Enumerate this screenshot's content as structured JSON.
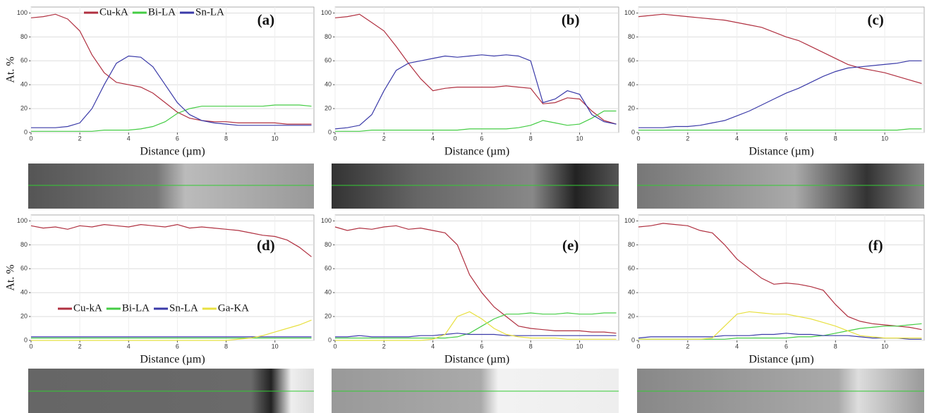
{
  "chart_data": [
    {
      "type": "line",
      "label": "(a)",
      "x_label": "Distance (µm)",
      "y_label": "At. %",
      "legend": "top",
      "x": [
        0,
        0.5,
        1,
        1.5,
        2,
        2.5,
        3,
        3.5,
        4,
        4.5,
        5,
        5.5,
        6,
        6.5,
        7,
        7.5,
        8,
        8.5,
        9,
        9.5,
        10,
        10.5,
        11,
        11.5
      ],
      "series": [
        {
          "name": "Cu-kA",
          "color": "#b03040",
          "values": [
            96,
            97,
            99,
            95,
            85,
            65,
            50,
            42,
            40,
            38,
            33,
            25,
            17,
            12,
            10,
            9,
            9,
            8,
            8,
            8,
            8,
            7,
            7,
            7
          ]
        },
        {
          "name": "Bi-LA",
          "color": "#44cc44",
          "values": [
            1,
            1,
            1,
            1,
            1,
            1,
            2,
            2,
            2,
            3,
            5,
            9,
            16,
            20,
            22,
            22,
            22,
            22,
            22,
            22,
            23,
            23,
            23,
            22
          ]
        },
        {
          "name": "Sn-LA",
          "color": "#3a3aa8",
          "values": [
            4,
            4,
            4,
            5,
            8,
            20,
            40,
            58,
            64,
            63,
            55,
            40,
            25,
            15,
            10,
            8,
            7,
            6,
            6,
            6,
            6,
            6,
            6,
            6
          ]
        }
      ],
      "xlim": [
        0,
        11.6
      ],
      "ylim": [
        0,
        105
      ],
      "xticks": [
        0,
        2,
        4,
        6,
        8,
        10
      ],
      "yticks": [
        0,
        20,
        40,
        60,
        80,
        100
      ],
      "grid": true
    },
    {
      "type": "line",
      "label": "(b)",
      "x_label": "Distance (µm)",
      "x": [
        0,
        0.5,
        1,
        1.5,
        2,
        2.5,
        3,
        3.5,
        4,
        4.5,
        5,
        5.5,
        6,
        6.5,
        7,
        7.5,
        8,
        8.5,
        9,
        9.5,
        10,
        10.5,
        11,
        11.5
      ],
      "series": [
        {
          "color": "#b03040",
          "values": [
            96,
            97,
            99,
            92,
            85,
            72,
            58,
            45,
            35,
            37,
            38,
            38,
            38,
            38,
            39,
            38,
            37,
            24,
            25,
            29,
            28,
            18,
            10,
            7
          ]
        },
        {
          "color": "#44cc44",
          "values": [
            1,
            1,
            1,
            2,
            2,
            2,
            2,
            2,
            2,
            2,
            2,
            3,
            3,
            3,
            3,
            4,
            6,
            10,
            8,
            6,
            7,
            12,
            18,
            18
          ]
        },
        {
          "color": "#3a3aa8",
          "values": [
            3,
            4,
            6,
            15,
            35,
            52,
            58,
            60,
            62,
            64,
            63,
            64,
            65,
            64,
            65,
            64,
            60,
            25,
            28,
            35,
            32,
            15,
            9,
            7
          ]
        }
      ],
      "xlim": [
        0,
        11.6
      ],
      "ylim": [
        0,
        105
      ],
      "xticks": [
        0,
        2,
        4,
        6,
        8,
        10
      ],
      "yticks": [
        0,
        20,
        40,
        60,
        80,
        100
      ],
      "grid": true
    },
    {
      "type": "line",
      "label": "(c)",
      "x_label": "Distance (µm)",
      "x": [
        0,
        0.5,
        1,
        1.5,
        2,
        2.5,
        3,
        3.5,
        4,
        4.5,
        5,
        5.5,
        6,
        6.5,
        7,
        7.5,
        8,
        8.5,
        9,
        9.5,
        10,
        10.5,
        11,
        11.5
      ],
      "series": [
        {
          "color": "#b03040",
          "values": [
            97,
            98,
            99,
            98,
            97,
            96,
            95,
            94,
            92,
            90,
            88,
            84,
            80,
            77,
            72,
            67,
            62,
            57,
            54,
            52,
            50,
            47,
            44,
            41
          ]
        },
        {
          "color": "#44cc44",
          "values": [
            2,
            2,
            2,
            2,
            2,
            2,
            2,
            2,
            2,
            2,
            2,
            2,
            2,
            2,
            2,
            2,
            2,
            2,
            2,
            2,
            2,
            2,
            3,
            3
          ]
        },
        {
          "color": "#3a3aa8",
          "values": [
            4,
            4,
            4,
            5,
            5,
            6,
            8,
            10,
            14,
            18,
            23,
            28,
            33,
            37,
            42,
            47,
            51,
            54,
            55,
            56,
            57,
            58,
            60,
            60
          ]
        }
      ],
      "xlim": [
        0,
        11.6
      ],
      "ylim": [
        0,
        105
      ],
      "xticks": [
        0,
        2,
        4,
        6,
        8,
        10
      ],
      "yticks": [
        0,
        20,
        40,
        60,
        80,
        100
      ],
      "grid": true
    },
    {
      "type": "line",
      "label": "(d)",
      "x_label": "Distance (µm)",
      "y_label": "At. %",
      "legend": "lower-left",
      "x": [
        0,
        0.5,
        1,
        1.5,
        2,
        2.5,
        3,
        3.5,
        4,
        4.5,
        5,
        5.5,
        6,
        6.5,
        7,
        7.5,
        8,
        8.5,
        9,
        9.5,
        10,
        10.5,
        11,
        11.5
      ],
      "series": [
        {
          "name": "Cu-kA",
          "color": "#b03040",
          "values": [
            96,
            94,
            95,
            93,
            96,
            95,
            97,
            96,
            95,
            97,
            96,
            95,
            97,
            94,
            95,
            94,
            93,
            92,
            90,
            88,
            87,
            84,
            78,
            70
          ]
        },
        {
          "name": "Bi-LA",
          "color": "#44cc44",
          "values": [
            2,
            2,
            2,
            2,
            2,
            2,
            2,
            2,
            2,
            2,
            2,
            2,
            2,
            2,
            2,
            2,
            2,
            2,
            2,
            2,
            2,
            2,
            2,
            2
          ]
        },
        {
          "name": "Sn-LA",
          "color": "#3a3aa8",
          "values": [
            3,
            3,
            3,
            3,
            3,
            3,
            3,
            3,
            3,
            3,
            3,
            3,
            3,
            3,
            3,
            3,
            3,
            3,
            3,
            3,
            3,
            3,
            3,
            3
          ]
        },
        {
          "name": "Ga-KA",
          "color": "#e8e040",
          "values": [
            0,
            0,
            0,
            0,
            0,
            0,
            0,
            0,
            0,
            0,
            0,
            0,
            0,
            0,
            0,
            0,
            0,
            1,
            2,
            4,
            7,
            10,
            13,
            17
          ]
        }
      ],
      "xlim": [
        0,
        11.6
      ],
      "ylim": [
        0,
        105
      ],
      "xticks": [
        0,
        2,
        4,
        6,
        8,
        10
      ],
      "yticks": [
        0,
        20,
        40,
        60,
        80,
        100
      ],
      "grid": true
    },
    {
      "type": "line",
      "label": "(e)",
      "x_label": "Distance (µm)",
      "x": [
        0,
        0.5,
        1,
        1.5,
        2,
        2.5,
        3,
        3.5,
        4,
        4.5,
        5,
        5.5,
        6,
        6.5,
        7,
        7.5,
        8,
        8.5,
        9,
        9.5,
        10,
        10.5,
        11,
        11.5
      ],
      "series": [
        {
          "color": "#b03040",
          "values": [
            95,
            92,
            94,
            93,
            95,
            96,
            93,
            94,
            92,
            90,
            80,
            55,
            40,
            28,
            20,
            12,
            10,
            9,
            8,
            8,
            8,
            7,
            7,
            6
          ]
        },
        {
          "color": "#44cc44",
          "values": [
            2,
            2,
            2,
            2,
            2,
            2,
            2,
            2,
            2,
            2,
            3,
            6,
            12,
            18,
            22,
            22,
            23,
            22,
            22,
            23,
            22,
            22,
            23,
            23
          ]
        },
        {
          "color": "#3a3aa8",
          "values": [
            3,
            3,
            4,
            3,
            3,
            3,
            3,
            4,
            4,
            5,
            6,
            5,
            5,
            5,
            4,
            4,
            4,
            4,
            4,
            4,
            4,
            4,
            4,
            4
          ]
        },
        {
          "color": "#e8e040",
          "values": [
            0,
            0,
            0,
            0,
            0,
            0,
            0,
            0,
            1,
            5,
            20,
            24,
            18,
            10,
            5,
            3,
            2,
            2,
            2,
            1,
            1,
            1,
            1,
            1
          ]
        }
      ],
      "xlim": [
        0,
        11.6
      ],
      "ylim": [
        0,
        105
      ],
      "xticks": [
        0,
        2,
        4,
        6,
        8,
        10
      ],
      "yticks": [
        0,
        20,
        40,
        60,
        80,
        100
      ],
      "grid": true
    },
    {
      "type": "line",
      "label": "(f)",
      "x_label": "Distance (µm)",
      "x": [
        0,
        0.5,
        1,
        1.5,
        2,
        2.5,
        3,
        3.5,
        4,
        4.5,
        5,
        5.5,
        6,
        6.5,
        7,
        7.5,
        8,
        8.5,
        9,
        9.5,
        10,
        10.5,
        11,
        11.5
      ],
      "series": [
        {
          "color": "#b03040",
          "values": [
            95,
            96,
            98,
            97,
            96,
            92,
            90,
            80,
            68,
            60,
            52,
            47,
            48,
            47,
            45,
            42,
            30,
            20,
            16,
            14,
            13,
            12,
            11,
            9
          ]
        },
        {
          "color": "#44cc44",
          "values": [
            1,
            1,
            1,
            1,
            1,
            1,
            1,
            1,
            2,
            2,
            2,
            2,
            2,
            3,
            3,
            4,
            6,
            8,
            10,
            11,
            12,
            12,
            13,
            14
          ]
        },
        {
          "color": "#3a3aa8",
          "values": [
            2,
            3,
            3,
            3,
            3,
            3,
            3,
            4,
            4,
            4,
            5,
            5,
            6,
            5,
            5,
            4,
            4,
            4,
            3,
            2,
            2,
            2,
            1,
            1
          ]
        },
        {
          "color": "#e8e040",
          "values": [
            1,
            1,
            1,
            1,
            1,
            1,
            2,
            12,
            22,
            24,
            23,
            22,
            22,
            20,
            18,
            15,
            12,
            8,
            4,
            3,
            2,
            2,
            2,
            2
          ]
        }
      ],
      "xlim": [
        0,
        11.6
      ],
      "ylim": [
        0,
        105
      ],
      "xticks": [
        0,
        2,
        4,
        6,
        8,
        10
      ],
      "yticks": [
        0,
        20,
        40,
        60,
        80,
        100
      ],
      "grid": true
    }
  ]
}
